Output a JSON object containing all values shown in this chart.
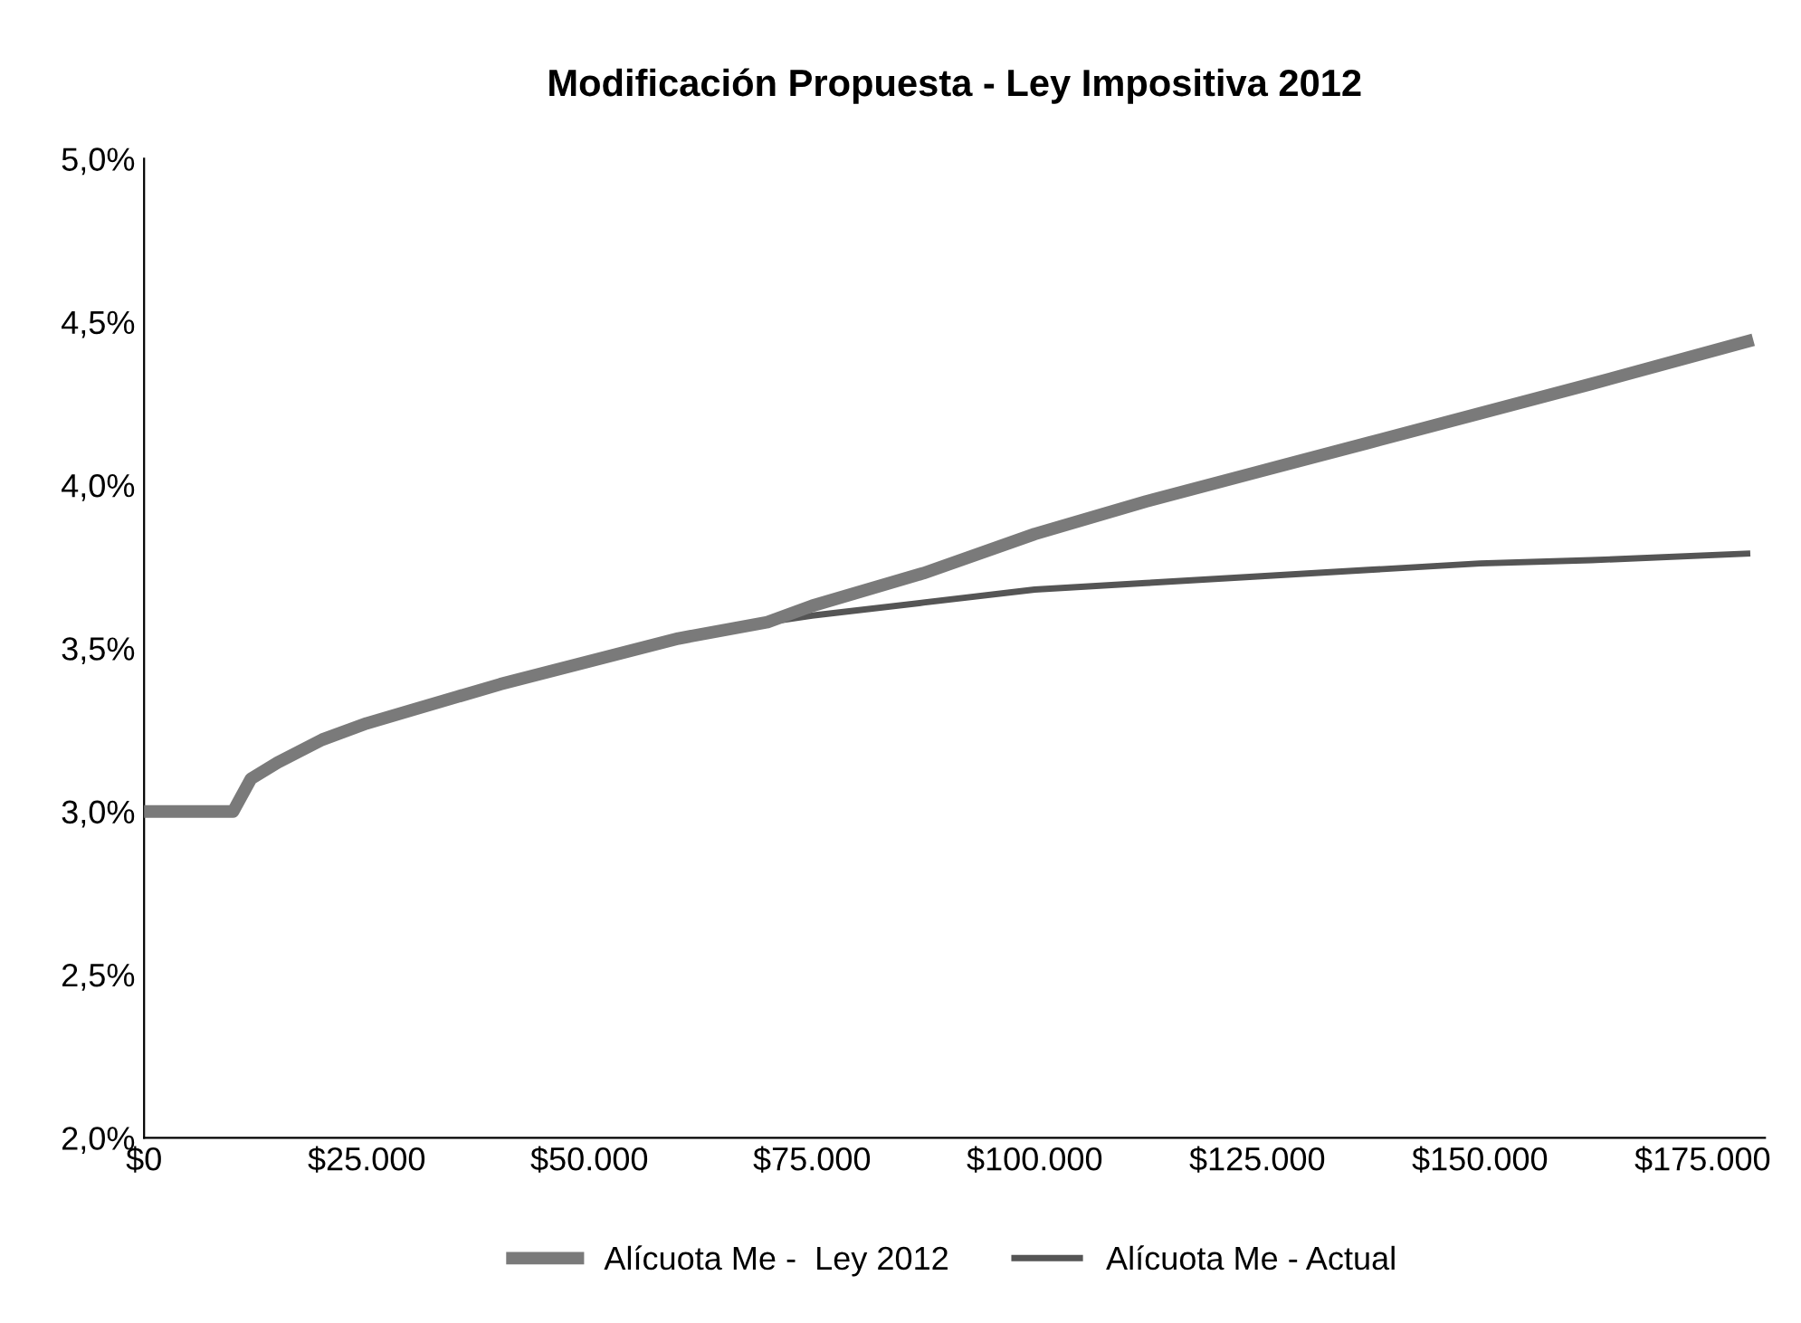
{
  "chart_data": {
    "type": "line",
    "title": "Modificación Propuesta - Ley Impositiva 2012",
    "xlim": [
      0,
      182000
    ],
    "ylim": [
      2.0,
      5.0
    ],
    "xticks": [
      {
        "value": 0,
        "label": "$0"
      },
      {
        "value": 25000,
        "label": "$25.000"
      },
      {
        "value": 50000,
        "label": "$50.000"
      },
      {
        "value": 75000,
        "label": "$75.000"
      },
      {
        "value": 100000,
        "label": "$100.000"
      },
      {
        "value": 125000,
        "label": "$125.000"
      },
      {
        "value": 150000,
        "label": "$150.000"
      },
      {
        "value": 175000,
        "label": "$175.000"
      }
    ],
    "yticks": [
      {
        "value": 2.0,
        "label": "2,0%"
      },
      {
        "value": 2.5,
        "label": "2,5%"
      },
      {
        "value": 3.0,
        "label": "3,0%"
      },
      {
        "value": 3.5,
        "label": "3,5%"
      },
      {
        "value": 4.0,
        "label": "4,0%"
      },
      {
        "value": 4.5,
        "label": "4,5%"
      },
      {
        "value": 5.0,
        "label": "5,0%"
      }
    ],
    "grid": false,
    "legend": "bottom",
    "marker": "none",
    "line_style": "solid",
    "series": [
      {
        "name": "Alícuota Me -  Ley 2012",
        "color": "#7a7a7a",
        "x": [
          0,
          10000,
          12000,
          15000,
          20000,
          25000,
          30000,
          40000,
          50000,
          60000,
          70000,
          75000,
          87500,
          100000,
          112500,
          125000,
          137500,
          150000,
          162500,
          180000
        ],
        "values": [
          3.0,
          3.0,
          3.1,
          3.15,
          3.22,
          3.27,
          3.31,
          3.39,
          3.46,
          3.53,
          3.58,
          3.63,
          3.73,
          3.85,
          3.95,
          4.04,
          4.13,
          4.22,
          4.31,
          4.44
        ]
      },
      {
        "name": "Alícuota Me - Actual",
        "color": "#555555",
        "x": [
          0,
          10000,
          12000,
          15000,
          20000,
          25000,
          30000,
          40000,
          50000,
          60000,
          70000,
          75000,
          87500,
          100000,
          112500,
          125000,
          137500,
          150000,
          162500,
          180000
        ],
        "values": [
          3.0,
          3.0,
          3.1,
          3.15,
          3.22,
          3.27,
          3.31,
          3.39,
          3.46,
          3.53,
          3.58,
          3.6,
          3.64,
          3.68,
          3.7,
          3.72,
          3.74,
          3.76,
          3.77,
          3.79
        ]
      }
    ]
  }
}
